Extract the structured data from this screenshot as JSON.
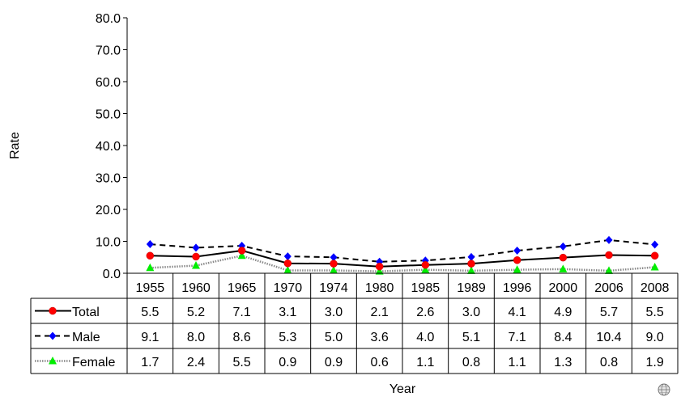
{
  "chart_data": {
    "type": "line",
    "title": "",
    "xlabel": "Year",
    "ylabel": "Rate",
    "ylim": [
      0,
      80
    ],
    "yticks": [
      "0.0",
      "10.0",
      "20.0",
      "30.0",
      "40.0",
      "50.0",
      "60.0",
      "70.0",
      "80.0"
    ],
    "categories": [
      "1955",
      "1960",
      "1965",
      "1970",
      "1974",
      "1980",
      "1985",
      "1989",
      "1996",
      "2000",
      "2006",
      "2008"
    ],
    "series": [
      {
        "name": "Total",
        "color": "#ff0000",
        "marker": "circle",
        "line": "solid",
        "values": [
          5.5,
          5.2,
          7.1,
          3.1,
          3.0,
          2.1,
          2.6,
          3.0,
          4.1,
          4.9,
          5.7,
          5.5
        ],
        "labels": [
          "5.5",
          "5.2",
          "7.1",
          "3.1",
          "3.0",
          "2.1",
          "2.6",
          "3.0",
          "4.1",
          "4.9",
          "5.7",
          "5.5"
        ]
      },
      {
        "name": "Male",
        "color": "#0000ff",
        "marker": "diamond",
        "line": "dashed",
        "values": [
          9.1,
          8.0,
          8.6,
          5.3,
          5.0,
          3.6,
          4.0,
          5.1,
          7.1,
          8.4,
          10.4,
          9.0
        ],
        "labels": [
          "9.1",
          "8.0",
          "8.6",
          "5.3",
          "5.0",
          "3.6",
          "4.0",
          "5.1",
          "7.1",
          "8.4",
          "10.4",
          "9.0"
        ]
      },
      {
        "name": "Female",
        "color": "#00ee00",
        "marker": "triangle",
        "line": "dotted",
        "values": [
          1.7,
          2.4,
          5.5,
          0.9,
          0.9,
          0.6,
          1.1,
          0.8,
          1.1,
          1.3,
          0.8,
          1.9
        ],
        "labels": [
          "1.7",
          "2.4",
          "5.5",
          "0.9",
          "0.9",
          "0.6",
          "1.1",
          "0.8",
          "1.1",
          "1.3",
          "0.8",
          "1.9"
        ]
      }
    ],
    "grid": false,
    "legend": "data-table"
  },
  "corner_icon": "globe-emblem-icon"
}
